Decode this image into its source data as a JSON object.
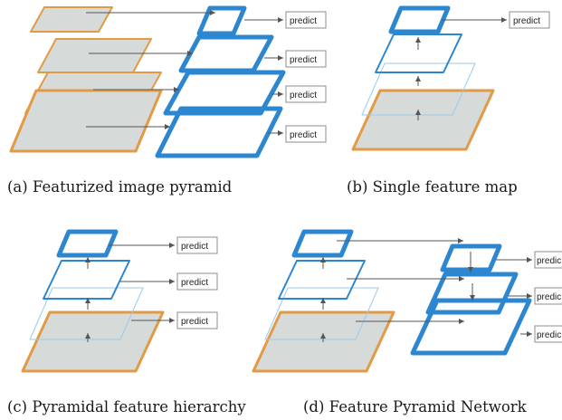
{
  "panels": [
    {
      "id": "a",
      "caption": "(a) Featurized image pyramid"
    },
    {
      "id": "b",
      "caption": "(b) Single feature map"
    },
    {
      "id": "c",
      "caption": "(c) Pyramidal feature hierarchy"
    },
    {
      "id": "d",
      "caption": "(d) Feature Pyramid Network"
    }
  ],
  "predict_label": "predict",
  "predict_label_truncated": "predic",
  "colors": {
    "feature_map": "#2d86d0",
    "feature_map_light": "#9ccaea",
    "image_border": "#e39a45",
    "image_fill": "#d6dad9",
    "arrow": "#555555"
  }
}
